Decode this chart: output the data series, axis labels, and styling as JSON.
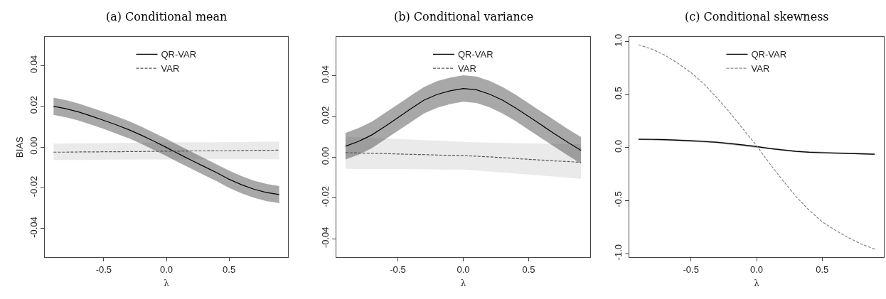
{
  "chart_data": [
    {
      "type": "line",
      "title": "(a) Conditional mean",
      "xlabel": "λ",
      "ylabel": "BIAS",
      "x": [
        -0.9,
        -0.8,
        -0.7,
        -0.6,
        -0.5,
        -0.4,
        -0.3,
        -0.2,
        -0.1,
        0,
        0.1,
        0.2,
        0.3,
        0.4,
        0.5,
        0.6,
        0.7,
        0.8,
        0.9
      ],
      "xlim": [
        -0.97,
        0.97
      ],
      "xticks": [
        {
          "value": -0.5,
          "label": "-0.5"
        },
        {
          "value": 0,
          "label": "0.0"
        },
        {
          "value": 0.5,
          "label": "0.5"
        }
      ],
      "ylim": [
        -0.054,
        0.054
      ],
      "yticks": [
        {
          "value": -0.04,
          "label": "-0.04"
        },
        {
          "value": -0.02,
          "label": "-0.02"
        },
        {
          "value": 0,
          "label": "0.00"
        },
        {
          "value": 0.02,
          "label": "0.02"
        },
        {
          "value": 0.04,
          "label": "0.04"
        }
      ],
      "legend": "top",
      "series": [
        {
          "name": "QR-VAR",
          "color": "#000000",
          "line_style": "solid",
          "values": [
            0.02,
            0.0188,
            0.0172,
            0.0152,
            0.0131,
            0.0109,
            0.0085,
            0.0058,
            0.0029,
            -0.0002,
            -0.0034,
            -0.0065,
            -0.0095,
            -0.0125,
            -0.0158,
            -0.0185,
            -0.0207,
            -0.0223,
            -0.0233
          ],
          "lower": [
            0.0158,
            0.0146,
            0.013,
            0.011,
            0.0089,
            0.0067,
            0.0043,
            0.0016,
            -0.0013,
            -0.0044,
            -0.0076,
            -0.0107,
            -0.0137,
            -0.0167,
            -0.02,
            -0.0227,
            -0.0249,
            -0.0265,
            -0.0275
          ],
          "upper": [
            0.0242,
            0.023,
            0.0214,
            0.0194,
            0.0173,
            0.0151,
            0.0127,
            0.01,
            0.0071,
            0.004,
            0.0008,
            -0.0023,
            -0.0053,
            -0.0083,
            -0.0116,
            -0.0143,
            -0.0165,
            -0.0181,
            -0.0191
          ]
        },
        {
          "name": "VAR",
          "color": "#555555",
          "line_style": "dashed",
          "values": [
            -0.0025,
            -0.0025,
            -0.0024,
            -0.0024,
            -0.0023,
            -0.0023,
            -0.0022,
            -0.0022,
            -0.0021,
            -0.002,
            -0.002,
            -0.0019,
            -0.0019,
            -0.0018,
            -0.0018,
            -0.0017,
            -0.0016,
            -0.0016,
            -0.0015
          ],
          "lower": [
            -0.0063,
            -0.0063,
            -0.0063,
            -0.0063,
            -0.0062,
            -0.0062,
            -0.0062,
            -0.0062,
            -0.0062,
            -0.0061,
            -0.0061,
            -0.0061,
            -0.0061,
            -0.0061,
            -0.0061,
            -0.006,
            -0.006,
            -0.006,
            -0.006
          ],
          "upper": [
            0.0017,
            0.0018,
            0.0018,
            0.0019,
            0.0019,
            0.002,
            0.002,
            0.0021,
            0.0021,
            0.0022,
            0.0022,
            0.0023,
            0.0023,
            0.0024,
            0.0024,
            0.0025,
            0.0025,
            0.0026,
            0.0026
          ]
        }
      ]
    },
    {
      "type": "line",
      "title": "(b) Conditional variance",
      "xlabel": "λ",
      "x": [
        -0.9,
        -0.8,
        -0.7,
        -0.6,
        -0.5,
        -0.4,
        -0.3,
        -0.2,
        -0.1,
        0,
        0.1,
        0.2,
        0.3,
        0.4,
        0.5,
        0.6,
        0.7,
        0.8,
        0.9
      ],
      "xlim": [
        -0.97,
        0.97
      ],
      "xticks": [
        {
          "value": -0.5,
          "label": "-0.5"
        },
        {
          "value": 0,
          "label": "0.0"
        },
        {
          "value": 0.5,
          "label": "0.5"
        }
      ],
      "ylim": [
        -0.049,
        0.059
      ],
      "yticks": [
        {
          "value": -0.04,
          "label": "-0.04"
        },
        {
          "value": -0.02,
          "label": "-0.02"
        },
        {
          "value": 0,
          "label": "0.00"
        },
        {
          "value": 0.02,
          "label": "0.02"
        },
        {
          "value": 0.04,
          "label": "0.04"
        }
      ],
      "legend": "top",
      "series": [
        {
          "name": "QR-VAR",
          "color": "#000000",
          "line_style": "solid",
          "values": [
            0.0054,
            0.0078,
            0.0109,
            0.015,
            0.0194,
            0.0238,
            0.028,
            0.0308,
            0.0326,
            0.0337,
            0.0331,
            0.031,
            0.028,
            0.0242,
            0.02,
            0.0157,
            0.0114,
            0.0073,
            0.0034
          ],
          "lower": [
            -0.0011,
            0.0013,
            0.0044,
            0.0085,
            0.0129,
            0.0172,
            0.0215,
            0.0243,
            0.0261,
            0.0272,
            0.0266,
            0.0245,
            0.0215,
            0.0177,
            0.0135,
            0.0092,
            0.0049,
            0.0008,
            -0.0031
          ],
          "upper": [
            0.0119,
            0.0143,
            0.0174,
            0.0215,
            0.0259,
            0.0303,
            0.0345,
            0.0373,
            0.0391,
            0.0402,
            0.0396,
            0.0375,
            0.0345,
            0.0307,
            0.0265,
            0.0222,
            0.0179,
            0.0138,
            0.0099
          ]
        },
        {
          "name": "VAR",
          "color": "#555555",
          "line_style": "dashed",
          "values": [
            0.0023,
            0.0021,
            0.0019,
            0.0018,
            0.0016,
            0.0014,
            0.0013,
            0.0011,
            0.0009,
            0.0008,
            0.0005,
            0.0002,
            -0.0002,
            -0.0006,
            -0.001,
            -0.0014,
            -0.0018,
            -0.0021,
            -0.0025
          ],
          "lower": [
            -0.0057,
            -0.0057,
            -0.0058,
            -0.0058,
            -0.0058,
            -0.0059,
            -0.0059,
            -0.0059,
            -0.006,
            -0.006,
            -0.0065,
            -0.007,
            -0.0075,
            -0.008,
            -0.0085,
            -0.009,
            -0.0095,
            -0.01,
            -0.0106
          ],
          "upper": [
            0.0101,
            0.0098,
            0.0095,
            0.0092,
            0.0089,
            0.0086,
            0.0083,
            0.008,
            0.0077,
            0.0074,
            0.0073,
            0.0072,
            0.0071,
            0.007,
            0.0068,
            0.0067,
            0.0066,
            0.0065,
            0.0063
          ]
        }
      ]
    },
    {
      "type": "line",
      "title": "(c) Conditional skewness",
      "xlabel": "λ",
      "x": [
        -0.9,
        -0.8,
        -0.7,
        -0.6,
        -0.5,
        -0.4,
        -0.3,
        -0.2,
        -0.1,
        0,
        0.1,
        0.2,
        0.3,
        0.4,
        0.5,
        0.6,
        0.7,
        0.8,
        0.9
      ],
      "xlim": [
        -0.97,
        0.97
      ],
      "xticks": [
        {
          "value": -0.5,
          "label": "-0.5"
        },
        {
          "value": 0,
          "label": "0.0"
        },
        {
          "value": 0.5,
          "label": "0.5"
        }
      ],
      "ylim": [
        -1.033,
        1.044
      ],
      "yticks": [
        {
          "value": -1,
          "label": "-1.0"
        },
        {
          "value": -0.5,
          "label": "-0.5"
        },
        {
          "value": 0,
          "label": "0.0"
        },
        {
          "value": 0.5,
          "label": "0.5"
        },
        {
          "value": 1,
          "label": "1.0"
        }
      ],
      "legend": "top",
      "series": [
        {
          "name": "QR-VAR",
          "color": "#000000",
          "line_style": "solid",
          "values": [
            0.079,
            0.078,
            0.075,
            0.07,
            0.065,
            0.058,
            0.05,
            0.038,
            0.025,
            0.01,
            -0.008,
            -0.022,
            -0.035,
            -0.043,
            -0.048,
            -0.052,
            -0.055,
            -0.058,
            -0.062
          ],
          "lower": [
            0.071,
            0.07,
            0.067,
            0.062,
            0.057,
            0.05,
            0.042,
            0.03,
            0.017,
            0.002,
            -0.016,
            -0.03,
            -0.043,
            -0.051,
            -0.056,
            -0.06,
            -0.063,
            -0.066,
            -0.07
          ],
          "upper": [
            0.087,
            0.086,
            0.083,
            0.078,
            0.073,
            0.066,
            0.058,
            0.046,
            0.033,
            0.018,
            0.0,
            -0.014,
            -0.027,
            -0.035,
            -0.04,
            -0.044,
            -0.047,
            -0.05,
            -0.054
          ]
        },
        {
          "name": "VAR",
          "color": "#888888",
          "line_style": "dashed",
          "values": [
            0.971,
            0.93,
            0.873,
            0.796,
            0.708,
            0.6,
            0.467,
            0.325,
            0.171,
            0.018,
            -0.15,
            -0.31,
            -0.46,
            -0.59,
            -0.7,
            -0.78,
            -0.85,
            -0.91,
            -0.958
          ]
        }
      ]
    }
  ]
}
